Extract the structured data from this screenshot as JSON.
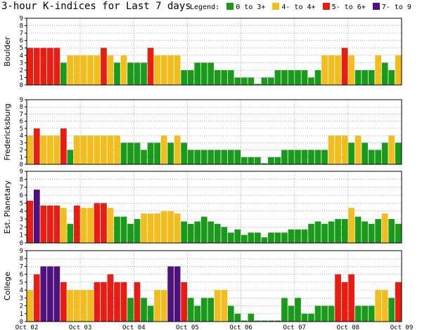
{
  "title": "3-hour K-indices for Last 7 days",
  "legend": {
    "label": "Legend:",
    "entries": [
      {
        "label": "0 to 3+",
        "color": "#1a9a1a"
      },
      {
        "label": "4- to 4+",
        "color": "#f2be1d"
      },
      {
        "label": "5- to 6+",
        "color": "#e81d12"
      },
      {
        "label": "7- to 9",
        "color": "#4e1280"
      }
    ]
  },
  "chart_data": {
    "type": "bar",
    "x_tick_labels": [
      "Oct 02",
      "Oct 03",
      "Oct 04",
      "Oct 05",
      "Oct 06",
      "Oct 07",
      "Oct 08",
      "Oct 09"
    ],
    "ylim": [
      0,
      9
    ],
    "y_ticks": [
      0,
      1,
      2,
      3,
      4,
      5,
      6,
      7,
      8,
      9
    ],
    "grid": "dotted",
    "panels": [
      {
        "ylabel": "Boulder",
        "values": [
          5,
          5,
          5,
          5,
          5,
          3,
          4,
          4,
          4,
          4,
          4,
          5,
          4,
          3,
          4,
          3,
          3,
          3,
          5,
          4,
          4,
          4,
          4,
          2,
          2,
          3,
          3,
          3,
          2,
          2,
          2,
          1,
          1,
          1,
          0,
          1,
          1,
          2,
          2,
          2,
          2,
          2,
          1,
          2,
          4,
          4,
          4,
          5,
          4,
          2,
          2,
          2,
          4,
          3,
          2,
          4,
          0,
          0,
          0
        ]
      },
      {
        "ylabel": "Fredericksburg",
        "values": [
          4,
          5,
          4,
          4,
          4,
          5,
          2,
          4,
          4,
          4,
          4,
          4,
          4,
          4,
          3,
          3,
          3,
          2,
          3,
          3,
          4,
          3,
          4,
          3,
          2,
          2,
          2,
          2,
          2,
          2,
          2,
          2,
          1,
          1,
          1,
          0,
          1,
          1,
          2,
          2,
          2,
          2,
          2,
          2,
          2,
          4,
          4,
          4,
          3,
          4,
          3,
          2,
          2,
          3,
          4,
          3,
          2,
          2,
          0,
          0,
          0
        ]
      },
      {
        "ylabel": "Est. Planetary",
        "values": [
          5.3,
          6.7,
          4.7,
          4.7,
          4.7,
          4.4,
          2.4,
          4.7,
          4.4,
          4.4,
          5.0,
          5.0,
          4.4,
          3.3,
          3.3,
          2.4,
          3.0,
          3.7,
          3.7,
          3.7,
          4.0,
          4.0,
          3.7,
          2.7,
          2.4,
          2.7,
          3.3,
          2.7,
          2.4,
          2.0,
          1.3,
          1.7,
          1.0,
          1.3,
          1.3,
          0.7,
          1.3,
          1.3,
          1.3,
          1.7,
          1.7,
          1.7,
          2.4,
          2.7,
          2.4,
          2.7,
          3.0,
          3.0,
          4.4,
          3.3,
          2.7,
          2.4,
          3.0,
          3.7,
          3.0,
          2.4,
          2.7,
          2.4,
          2.7
        ]
      },
      {
        "ylabel": "College",
        "values": [
          4,
          6,
          7,
          7,
          7,
          5,
          4,
          4,
          4,
          4,
          5,
          5,
          6,
          5,
          5,
          3,
          5,
          3,
          2,
          4,
          4,
          7,
          7,
          5,
          3,
          2,
          3,
          3,
          4,
          4,
          2,
          1,
          0,
          1,
          0,
          0,
          0,
          0,
          3,
          2,
          3,
          1,
          1,
          2,
          2,
          2,
          6,
          5,
          6,
          2,
          2,
          2,
          4,
          4,
          3,
          5,
          0,
          0,
          0
        ]
      }
    ]
  }
}
